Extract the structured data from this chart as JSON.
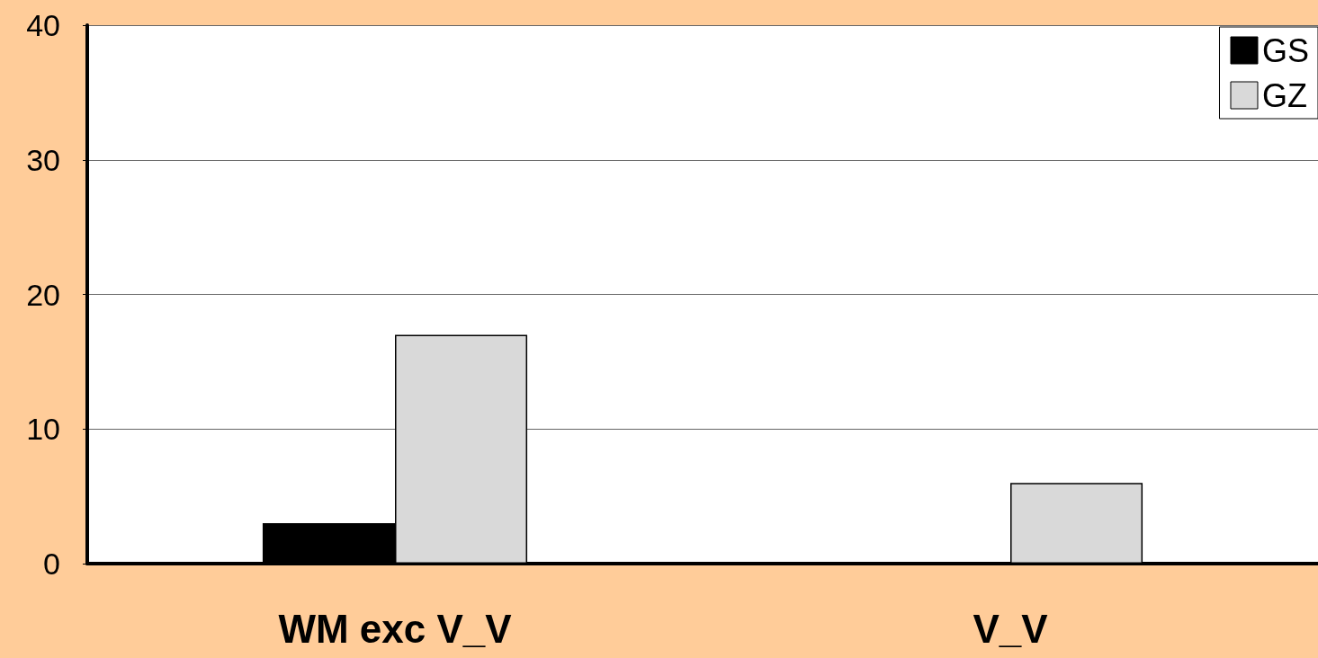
{
  "chart_data": {
    "type": "bar",
    "categories": [
      "WM exc V_V",
      "V_V"
    ],
    "series": [
      {
        "name": "GS",
        "color": "#000000",
        "values": [
          3,
          0
        ]
      },
      {
        "name": "GZ",
        "color": "#d9d9d9",
        "values": [
          17,
          6
        ]
      }
    ],
    "ylim": [
      0,
      40
    ],
    "yticks": [
      0,
      10,
      20,
      30,
      40
    ],
    "grid": "y",
    "legend": "top right"
  }
}
